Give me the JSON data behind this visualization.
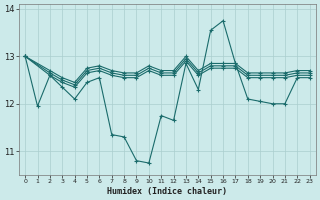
{
  "xlabel": "Humidex (Indice chaleur)",
  "bg_color": "#cceaea",
  "line_color": "#1a6b6b",
  "grid_color": "#aacece",
  "xlim": [
    -0.5,
    23.5
  ],
  "ylim": [
    10.5,
    14.1
  ],
  "yticks": [
    11,
    12,
    13,
    14
  ],
  "xticks": [
    0,
    1,
    2,
    3,
    4,
    5,
    6,
    7,
    8,
    9,
    10,
    11,
    12,
    13,
    14,
    15,
    16,
    17,
    18,
    19,
    20,
    21,
    22,
    23
  ],
  "lines": [
    {
      "x": [
        0,
        1,
        2,
        3,
        4,
        5,
        6,
        7,
        8,
        9,
        10,
        11,
        12,
        13,
        14,
        15,
        16,
        17,
        18,
        19,
        20,
        21,
        22,
        23
      ],
      "y": [
        13.0,
        11.95,
        12.6,
        12.35,
        12.1,
        12.45,
        12.55,
        11.35,
        11.3,
        10.8,
        10.75,
        11.75,
        11.65,
        12.85,
        12.3,
        13.55,
        13.75,
        12.85,
        12.1,
        12.05,
        12.0,
        12.0,
        12.55,
        12.55
      ],
      "marker": true
    },
    {
      "x": [
        0,
        2,
        3,
        4,
        5,
        6,
        7,
        8,
        9,
        10,
        11,
        12,
        13,
        14,
        15,
        16,
        17,
        18,
        19,
        20,
        21,
        22,
        23
      ],
      "y": [
        13.0,
        12.6,
        12.45,
        12.35,
        12.65,
        12.7,
        12.6,
        12.55,
        12.55,
        12.7,
        12.6,
        12.6,
        12.9,
        12.6,
        12.75,
        12.75,
        12.75,
        12.55,
        12.55,
        12.55,
        12.55,
        12.6,
        12.6
      ],
      "marker": true
    },
    {
      "x": [
        0,
        2,
        3,
        4,
        5,
        6,
        7,
        8,
        9,
        10,
        11,
        12,
        13,
        14,
        15,
        16,
        17,
        18,
        19,
        20,
        21,
        22,
        23
      ],
      "y": [
        13.0,
        12.65,
        12.5,
        12.4,
        12.7,
        12.75,
        12.65,
        12.6,
        12.6,
        12.75,
        12.65,
        12.65,
        12.95,
        12.65,
        12.8,
        12.8,
        12.8,
        12.6,
        12.6,
        12.6,
        12.6,
        12.65,
        12.65
      ],
      "marker": true
    },
    {
      "x": [
        0,
        2,
        3,
        4,
        5,
        6,
        7,
        8,
        9,
        10,
        11,
        12,
        13,
        14,
        15,
        16,
        17,
        18,
        19,
        20,
        21,
        22,
        23
      ],
      "y": [
        13.0,
        12.7,
        12.55,
        12.45,
        12.75,
        12.8,
        12.7,
        12.65,
        12.65,
        12.8,
        12.7,
        12.7,
        13.0,
        12.7,
        12.85,
        12.85,
        12.85,
        12.65,
        12.65,
        12.65,
        12.65,
        12.7,
        12.7
      ],
      "marker": true
    }
  ]
}
